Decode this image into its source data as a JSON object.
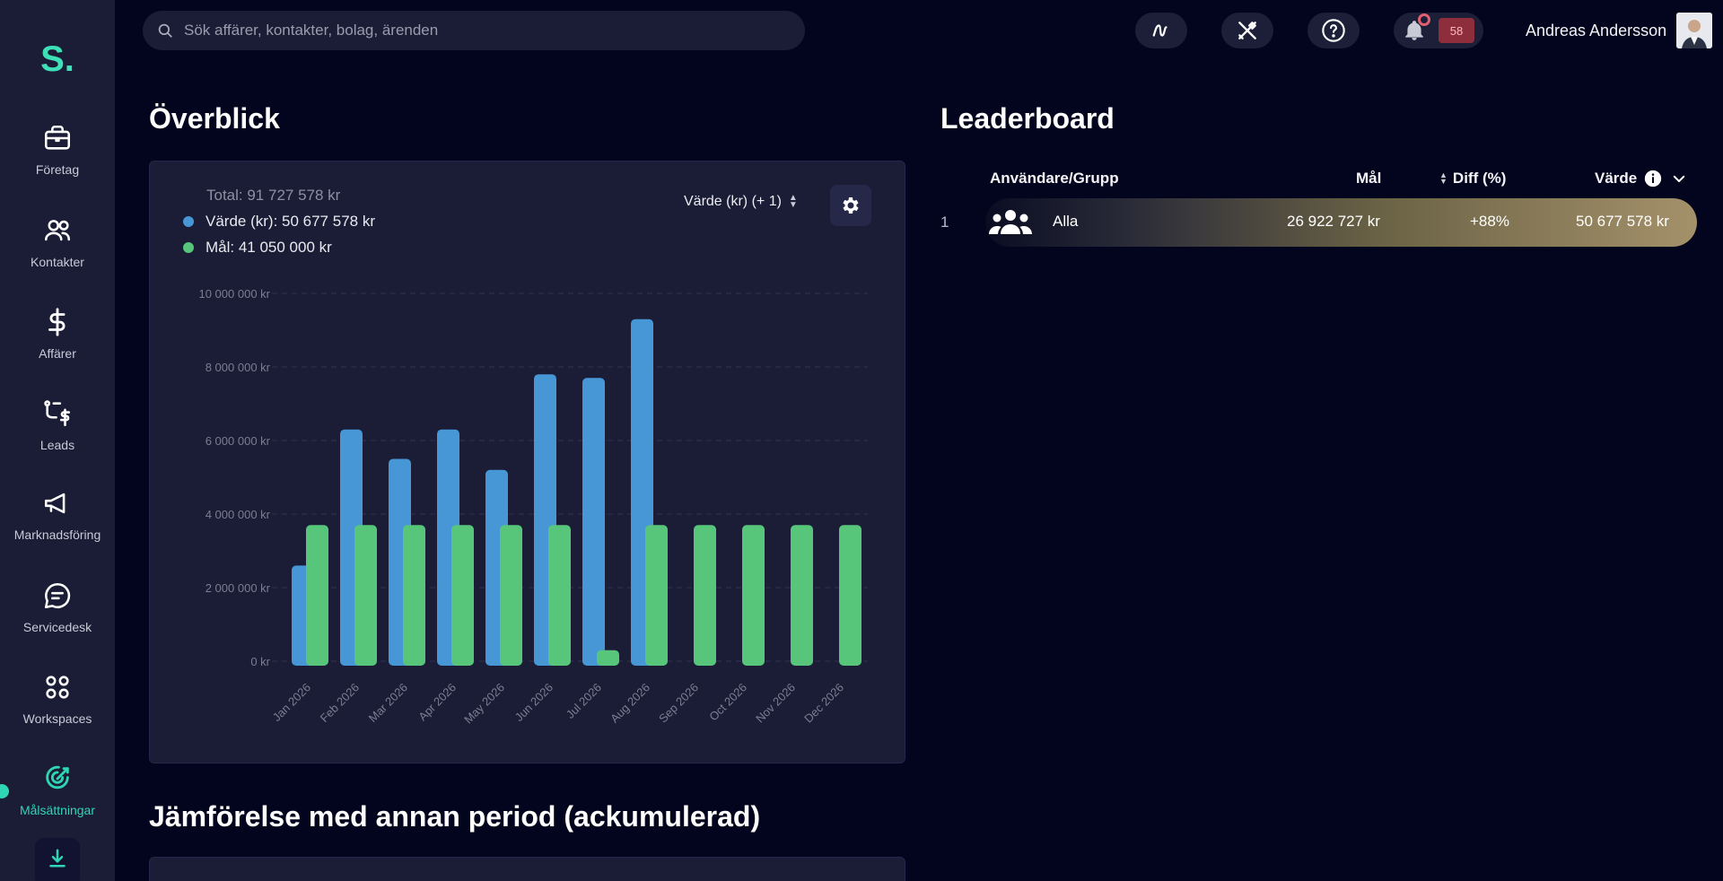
{
  "sidebar": {
    "logo": "S.",
    "items": [
      {
        "label": "Företag",
        "icon": "briefcase-icon"
      },
      {
        "label": "Kontakter",
        "icon": "users-icon"
      },
      {
        "label": "Affärer",
        "icon": "dollar-icon"
      },
      {
        "label": "Leads",
        "icon": "leads-icon"
      },
      {
        "label": "Marknadsföring",
        "icon": "megaphone-icon"
      },
      {
        "label": "Servicedesk",
        "icon": "chat-icon"
      },
      {
        "label": "Workspaces",
        "icon": "grid-icon"
      },
      {
        "label": "Målsättningar",
        "icon": "target-icon",
        "active": true
      }
    ]
  },
  "topbar": {
    "search_placeholder": "Sök affärer, kontakter, bolag, ärenden",
    "notification_count": "58",
    "user_name": "Andreas Andersson"
  },
  "overview": {
    "title": "Överblick",
    "legend_total": "Total: 91 727 578 kr",
    "legend_value": "Värde (kr): 50 677 578 kr",
    "legend_goal": "Mål: 41 050 000 kr",
    "metric_selector": "Värde (kr) (+ 1)",
    "value_color": "#4796d5",
    "goal_color": "#57c67a"
  },
  "comparison": {
    "title": "Jämförelse med annan period (ackumulerad)"
  },
  "leaderboard": {
    "title": "Leaderboard",
    "columns": {
      "user_group": "Användare/Grupp",
      "goal": "Mål",
      "diff": "Diff (%)",
      "value": "Värde"
    },
    "rows": [
      {
        "rank": "1",
        "name": "Alla",
        "goal": "26 922 727 kr",
        "diff": "+88%",
        "value": "50 677 578 kr"
      }
    ]
  },
  "chart_data": {
    "type": "bar",
    "categories": [
      "Jan 2026",
      "Feb 2026",
      "Mar 2026",
      "Apr 2026",
      "May 2026",
      "Jun 2026",
      "Jul 2026",
      "Aug 2026",
      "Sep 2026",
      "Oct 2026",
      "Nov 2026",
      "Dec 2026"
    ],
    "series": [
      {
        "name": "Värde (kr)",
        "values": [
          2600000,
          6300000,
          5500000,
          6300000,
          5200000,
          7800000,
          7700000,
          9300000,
          0,
          0,
          0,
          0
        ]
      },
      {
        "name": "Mål",
        "values": [
          3700000,
          3700000,
          3700000,
          3700000,
          3700000,
          3700000,
          300000,
          3700000,
          3700000,
          3700000,
          3700000,
          3700000
        ]
      }
    ],
    "yticks": [
      "0 kr",
      "2 000 000 kr",
      "4 000 000 kr",
      "6 000 000 kr",
      "8 000 000 kr",
      "10 000 000 kr"
    ],
    "ylim": [
      0,
      10000000
    ],
    "grid": true
  }
}
